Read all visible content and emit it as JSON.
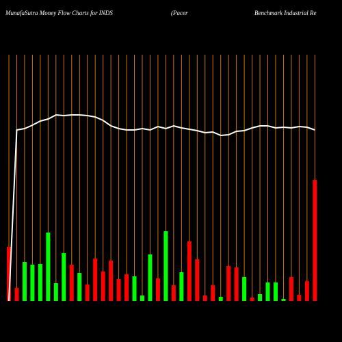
{
  "chart_data": {
    "type": "bar-line",
    "title": "MunafaSutra  Money Flow  Charts for INDS",
    "subtitle": "(Pacer",
    "subtitle2": "Benchmark Industrial Re",
    "ylim": [
      0,
      360
    ],
    "grid_color": "#c87800",
    "line_color": "#ffffff",
    "bars": {
      "values": [
        79,
        19,
        57,
        53,
        54,
        100,
        26,
        70,
        53,
        41,
        24,
        62,
        43,
        59,
        32,
        39,
        36,
        8,
        68,
        33,
        102,
        23,
        42,
        87,
        61,
        8,
        23,
        6,
        51,
        49,
        35,
        5,
        10,
        27,
        27,
        3,
        35,
        9,
        29,
        177
      ],
      "colors": [
        "red",
        "red",
        "green",
        "green",
        "green",
        "green",
        "green",
        "green",
        "red",
        "green",
        "red",
        "red",
        "red",
        "red",
        "red",
        "red",
        "green",
        "green",
        "green",
        "red",
        "green",
        "red",
        "green",
        "red",
        "red",
        "red",
        "red",
        "green",
        "red",
        "red",
        "green",
        "red",
        "green",
        "green",
        "green",
        "green",
        "red",
        "red",
        "red",
        "red"
      ]
    },
    "line": {
      "values": [
        0,
        250,
        252,
        257,
        263,
        266,
        272,
        271,
        272,
        272,
        271,
        269,
        264,
        256,
        252,
        250,
        250,
        252,
        250,
        255,
        252,
        256,
        253,
        251,
        249,
        246,
        247,
        242,
        243,
        248,
        249,
        253,
        256,
        256,
        253,
        254,
        253,
        255,
        254,
        250
      ]
    }
  }
}
